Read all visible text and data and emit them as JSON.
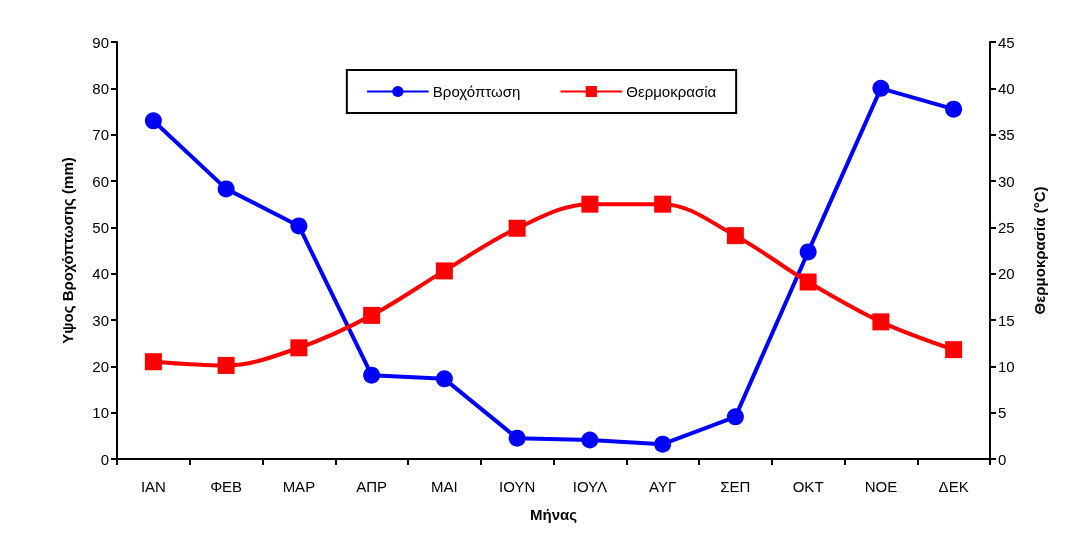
{
  "chart_data": {
    "type": "line",
    "xlabel": "Μήνας",
    "ylabel": "Υψος Βροχόπτωσης (mm)",
    "y2label": "Θερμοκρασία (°C)",
    "categories": [
      "ΙΑΝ",
      "ΦΕΒ",
      "ΜΑΡ",
      "ΑΠΡ",
      "ΜΑΙ",
      "ΙΟΥΝ",
      "ΙΟΥΛ",
      "ΑΥΓ",
      "ΣΕΠ",
      "ΟΚΤ",
      "ΝΟΕ",
      "ΔΕΚ"
    ],
    "series": [
      {
        "name": "Βροχόπτωση",
        "color": "#0000ff",
        "marker": "circle",
        "values": [
          73,
          58.3,
          50.3,
          18.1,
          17.3,
          4.5,
          4.1,
          3.2,
          9.1,
          44.7,
          80,
          75.5
        ]
      },
      {
        "name": "Θερμοκρασία",
        "color": "#ff0000",
        "marker": "square",
        "axis": "y2",
        "values": [
          10.5,
          10.1,
          12,
          15.5,
          20.3,
          24.9,
          27.5,
          27.5,
          24.1,
          19.1,
          14.8,
          11.8
        ]
      }
    ],
    "ylim": [
      0,
      90
    ],
    "yticks": [
      0,
      10,
      20,
      30,
      40,
      50,
      60,
      70,
      80,
      90
    ],
    "y2lim": [
      0,
      45
    ],
    "y2ticks": [
      0,
      5,
      10,
      15,
      20,
      25,
      30,
      35,
      40,
      45
    ],
    "grid": false,
    "legend": "top"
  }
}
